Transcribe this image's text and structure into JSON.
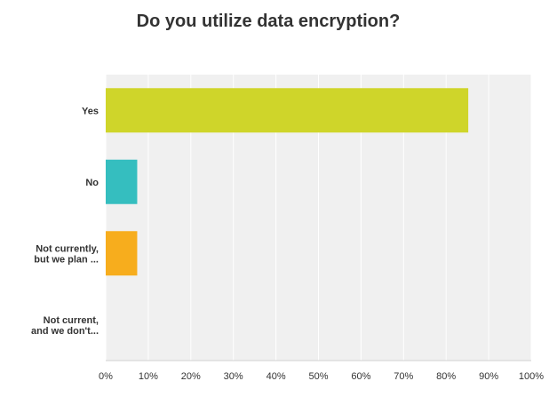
{
  "chart_data": {
    "type": "bar",
    "orientation": "horizontal",
    "title": "Do you utilize data encryption?",
    "categories": [
      [
        "Yes"
      ],
      [
        "No"
      ],
      [
        "Not currently,",
        "but we plan ..."
      ],
      [
        "Not current,",
        "and we don't..."
      ]
    ],
    "values": [
      85.2,
      7.4,
      7.4,
      0
    ],
    "colors": [
      "#cfd52a",
      "#35bebf",
      "#f7ad1d",
      "#a5a5a5"
    ],
    "xlim": [
      0,
      100
    ],
    "xticks": [
      "0%",
      "10%",
      "20%",
      "30%",
      "40%",
      "50%",
      "60%",
      "70%",
      "80%",
      "90%",
      "100%"
    ],
    "grid": true,
    "legend": "none"
  }
}
